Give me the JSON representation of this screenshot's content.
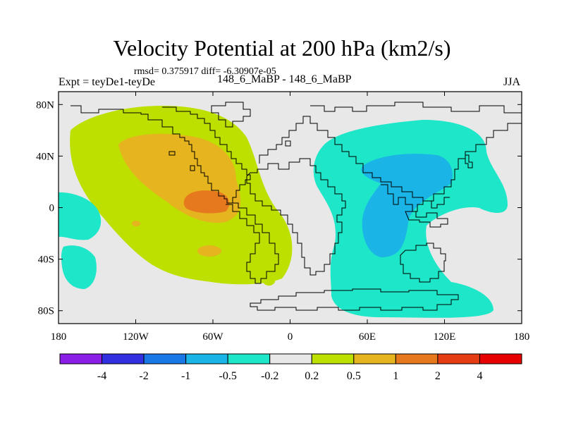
{
  "header": {
    "title": "Velocity Potential at 200 hPa (km2/s)",
    "stats": "rmsd= 0.375917 diff= -6.30907e-05",
    "experiment": "Expt = teyDe1-teyDe",
    "periods": "148_6_MaBP - 148_6_MaBP",
    "season": "JJA"
  },
  "colors": {
    "land_background": "#e8e8e8",
    "coastline": "#000000"
  },
  "chart_data": {
    "type": "heatmap",
    "title": "Velocity Potential at 200 hPa (km2/s)",
    "xlabel": "",
    "ylabel": "",
    "xlim": [
      -180,
      180
    ],
    "ylim": [
      -90,
      90
    ],
    "x_ticks": [
      {
        "value": -180,
        "label": "180"
      },
      {
        "value": -120,
        "label": "120W"
      },
      {
        "value": -60,
        "label": "60W"
      },
      {
        "value": 0,
        "label": "0"
      },
      {
        "value": 60,
        "label": "60E"
      },
      {
        "value": 120,
        "label": "120E"
      },
      {
        "value": 180,
        "label": "180"
      }
    ],
    "y_ticks": [
      {
        "value": 80,
        "label": "80N"
      },
      {
        "value": 40,
        "label": "40N"
      },
      {
        "value": 0,
        "label": "0"
      },
      {
        "value": -40,
        "label": "40S"
      },
      {
        "value": -80,
        "label": "80S"
      }
    ],
    "colorbar": {
      "colors": [
        "#8a1de6",
        "#3030e0",
        "#1a78e6",
        "#1ab4e6",
        "#1ee6c8",
        "#e8e8e8",
        "#bde000",
        "#e6b41e",
        "#e6781e",
        "#e63c14",
        "#e60000"
      ],
      "boundaries": [
        "-4",
        "-2",
        "-1",
        "-0.5",
        "-0.2",
        "0.2",
        "0.5",
        "1",
        "2",
        "4"
      ]
    },
    "regions": [
      {
        "name": "positive-region-pacific-americas",
        "level": "0.2 to 0.5",
        "color": "#bde000",
        "center_lon": -80,
        "center_lat": 25
      },
      {
        "name": "positive-region-inner",
        "level": "0.5 to 1",
        "color": "#e6b41e",
        "center_lon": -80,
        "center_lat": 25
      },
      {
        "name": "positive-region-core",
        "level": "1 to 2",
        "color": "#e6781e",
        "center_lon": -66,
        "center_lat": 4
      },
      {
        "name": "negative-region-africa-indian-ocean",
        "level": "-0.5 to -0.2",
        "color": "#1ee6c8",
        "center_lon": 85,
        "center_lat": -5
      },
      {
        "name": "negative-region-inner",
        "level": "-1 to -0.5",
        "color": "#1ab4e6",
        "center_lon": 80,
        "center_lat": 5
      },
      {
        "name": "negative-region-west-pacific",
        "level": "-0.5 to -0.2",
        "color": "#1ee6c8",
        "center_lon": -168,
        "center_lat": -20
      }
    ]
  }
}
